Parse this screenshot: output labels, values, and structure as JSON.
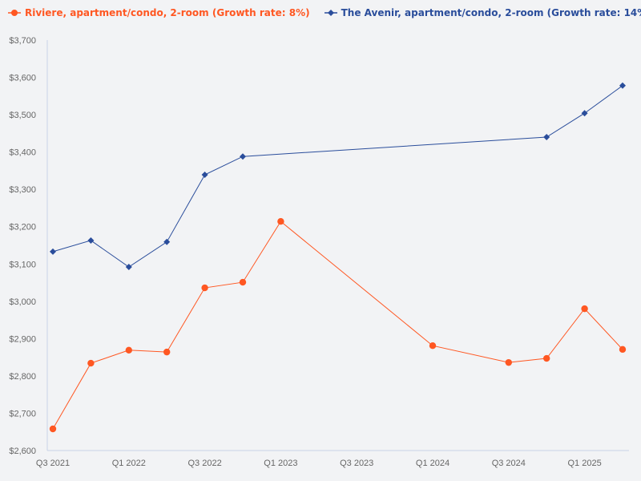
{
  "chart_data": {
    "type": "line",
    "title": "",
    "xlabel": "",
    "ylabel": "",
    "ylim": [
      2600,
      3700
    ],
    "y_ticks": [
      "$2,600",
      "$2,700",
      "$2,800",
      "$2,900",
      "$3,000",
      "$3,100",
      "$3,200",
      "$3,300",
      "$3,400",
      "$3,500",
      "$3,600",
      "$3,700"
    ],
    "x_categories": [
      "Q3 2021",
      "Q4 2021",
      "Q1 2022",
      "Q2 2022",
      "Q3 2022",
      "Q4 2022",
      "Q1 2023",
      "Q2 2023",
      "Q3 2023",
      "Q4 2023",
      "Q1 2024",
      "Q2 2024",
      "Q3 2024",
      "Q4 2024",
      "Q1 2025",
      "Q2 2025"
    ],
    "x_tick_labels": [
      "Q3 2021",
      "Q1 2022",
      "Q3 2022",
      "Q1 2023",
      "Q3 2023",
      "Q1 2024",
      "Q3 2024",
      "Q1 2025"
    ],
    "legend_position": "top-left",
    "grid": false,
    "series": [
      {
        "name": "Riviere, apartment/condo, 2-room (Growth rate: 8%)",
        "color": "#ff5722",
        "marker": "circle",
        "values": [
          2658,
          2834,
          2869,
          2864,
          3036,
          3051,
          3214,
          null,
          null,
          null,
          2881,
          null,
          2836,
          2847,
          2980,
          2871
        ]
      },
      {
        "name": "The Avenir, apartment/condo, 2-room (Growth rate: 14%)",
        "color": "#2a4d9b",
        "marker": "diamond",
        "values": [
          3133,
          3163,
          3092,
          3159,
          3339,
          3388,
          null,
          null,
          null,
          null,
          null,
          null,
          null,
          3440,
          3504,
          3578
        ]
      }
    ]
  }
}
